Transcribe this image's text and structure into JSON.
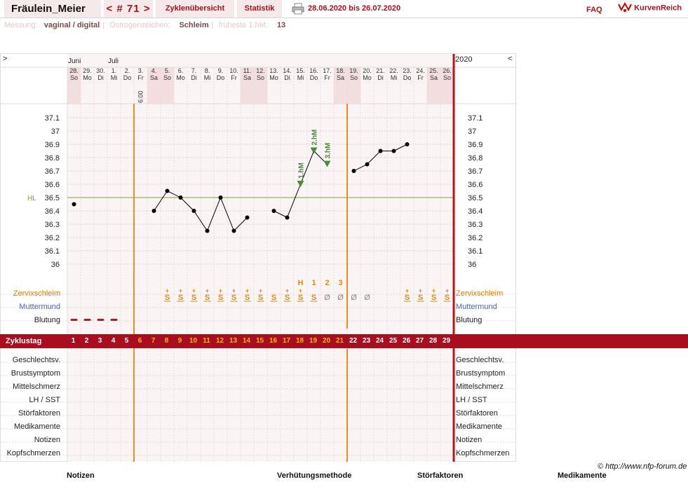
{
  "header": {
    "username": "Fräulein_Meier",
    "cycle_nav": "< # 71 >",
    "tabs": [
      "Zyklenübersicht",
      "Statistik"
    ],
    "date_range": "28.06.2020 bis 26.07.2020",
    "faq": "FAQ",
    "brand": "KurvenReich",
    "icons": [
      "printer-icon",
      "kurvenreich-logo-icon"
    ]
  },
  "subheader": {
    "messung_label": "Messung:",
    "messung_value": "vaginal / digital",
    "oestrogen_label": "Östrogenzeichen:",
    "oestrogen_value": "Schleim",
    "fruehste_label": "früheste 1.hM:",
    "fruehste_value": "13"
  },
  "chart": {
    "nav_left": ">",
    "nav_right": "<",
    "year": "2020",
    "months": [
      {
        "label": "Juni",
        "day": 1
      },
      {
        "label": "Juli",
        "day": 4
      }
    ],
    "days": [
      {
        "d": "28.",
        "w": "So"
      },
      {
        "d": "29.",
        "w": "Mo"
      },
      {
        "d": "30.",
        "w": "Di"
      },
      {
        "d": "1.",
        "w": "Mi"
      },
      {
        "d": "2.",
        "w": "Do"
      },
      {
        "d": "3.",
        "w": "Fr"
      },
      {
        "d": "4.",
        "w": "Sa"
      },
      {
        "d": "5.",
        "w": "So"
      },
      {
        "d": "6.",
        "w": "Mo"
      },
      {
        "d": "7.",
        "w": "Di"
      },
      {
        "d": "8.",
        "w": "Mi"
      },
      {
        "d": "9.",
        "w": "Do"
      },
      {
        "d": "10.",
        "w": "Fr"
      },
      {
        "d": "11.",
        "w": "Sa"
      },
      {
        "d": "12.",
        "w": "So"
      },
      {
        "d": "13.",
        "w": "Mo"
      },
      {
        "d": "14.",
        "w": "Di"
      },
      {
        "d": "15.",
        "w": "Mi"
      },
      {
        "d": "16.",
        "w": "Do"
      },
      {
        "d": "17.",
        "w": "Fr"
      },
      {
        "d": "18.",
        "w": "Sa"
      },
      {
        "d": "19.",
        "w": "So"
      },
      {
        "d": "20.",
        "w": "Mo"
      },
      {
        "d": "21.",
        "w": "Di"
      },
      {
        "d": "22.",
        "w": "Mi"
      },
      {
        "d": "23.",
        "w": "Do"
      },
      {
        "d": "24.",
        "w": "Fr"
      },
      {
        "d": "25.",
        "w": "Sa"
      },
      {
        "d": "26.",
        "w": "So"
      }
    ],
    "time_label": "6:00",
    "y_ticks": [
      "37.1",
      "37",
      "36.9",
      "36.8",
      "36.7",
      "36.6",
      "36.5",
      "36.4",
      "36.3",
      "36.2",
      "36.1",
      "36"
    ],
    "hl_label": "HL",
    "hm_labels": [
      "1.hM",
      "2.hM",
      "3.hM"
    ],
    "peak_marks": [
      "H",
      "1",
      "2",
      "3"
    ],
    "mucus": [
      "",
      "",
      "",
      "",
      "",
      "",
      "",
      "S+",
      "S+",
      "S+",
      "S+",
      "S+",
      "S+",
      "S+",
      "S+",
      "S",
      "S+",
      "S+",
      "S",
      "Ø",
      "Ø",
      "Ø",
      "Ø",
      "",
      "",
      "S+",
      "S+",
      "S+",
      "S+"
    ],
    "cycle_days": [
      "1",
      "2",
      "3",
      "4",
      "5",
      "6",
      "7",
      "8",
      "9",
      "10",
      "11",
      "12",
      "13",
      "14",
      "15",
      "16",
      "17",
      "18",
      "19",
      "20",
      "21",
      "22",
      "23",
      "24",
      "25",
      "26",
      "27",
      "28",
      "29"
    ],
    "row_labels": {
      "zervix": "Zervixschleim",
      "muttermund": "Muttermund",
      "blutung": "Blutung",
      "zyklustag": "Zyklustag",
      "geschlecht": "Geschlechtsv.",
      "brust": "Brustsymptom",
      "mittel": "Mittelschmerz",
      "lh": "LH / SST",
      "stoer": "Störfaktoren",
      "medi": "Medikamente",
      "notizen": "Notizen",
      "kopf": "Kopfschmerzen"
    }
  },
  "chart_data": {
    "type": "line",
    "title": "",
    "xlabel": "Zyklustag",
    "ylabel": "",
    "ylim": [
      36.0,
      37.1
    ],
    "hl": 36.5,
    "x": [
      1,
      2,
      3,
      4,
      5,
      6,
      7,
      8,
      9,
      10,
      11,
      12,
      13,
      14,
      15,
      16,
      17,
      18,
      19,
      20,
      21,
      22,
      23,
      24,
      25,
      26,
      27,
      28,
      29
    ],
    "series": [
      {
        "name": "",
        "values": [
          36.45,
          null,
          null,
          null,
          null,
          null,
          36.4,
          36.55,
          36.5,
          36.4,
          36.25,
          36.5,
          36.25,
          36.35,
          null,
          36.4,
          36.35,
          36.6,
          36.85,
          36.75,
          null,
          36.7,
          36.75,
          36.85,
          36.85,
          36.9,
          null,
          null,
          null
        ]
      }
    ],
    "high_measurements": {
      "1.hM": 18,
      "2.hM": 19,
      "3.hM": 20
    },
    "cover_line_days": [
      6,
      21
    ]
  },
  "footer": {
    "copyright": "© http://www.nfp-forum.de",
    "legend": [
      "Notizen",
      "Verhütungsmethode",
      "Störfaktoren",
      "Medikamente"
    ]
  }
}
